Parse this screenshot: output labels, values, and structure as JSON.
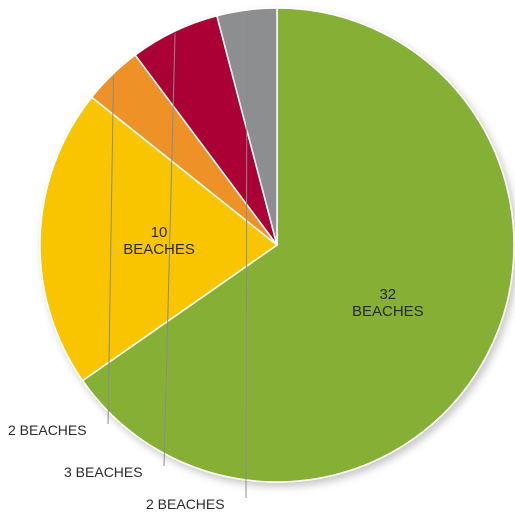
{
  "chart_data": {
    "type": "pie",
    "categories": [
      "32 BEACHES",
      "10 BEACHES",
      "2 BEACHES",
      "3 BEACHES",
      "2 BEACHES"
    ],
    "values": [
      32,
      10,
      2,
      3,
      2
    ],
    "colors": [
      "#86b034",
      "#f8c500",
      "#ee9126",
      "#aa0036",
      "#8d8e90"
    ],
    "labels": [
      {
        "number": "32",
        "word": "BEACHES"
      },
      {
        "number": "10",
        "word": "BEACHES"
      },
      {
        "text": "2 BEACHES"
      },
      {
        "text": "3 BEACHES"
      },
      {
        "text": "2 BEACHES"
      }
    ],
    "legend": "none",
    "grid": false
  }
}
